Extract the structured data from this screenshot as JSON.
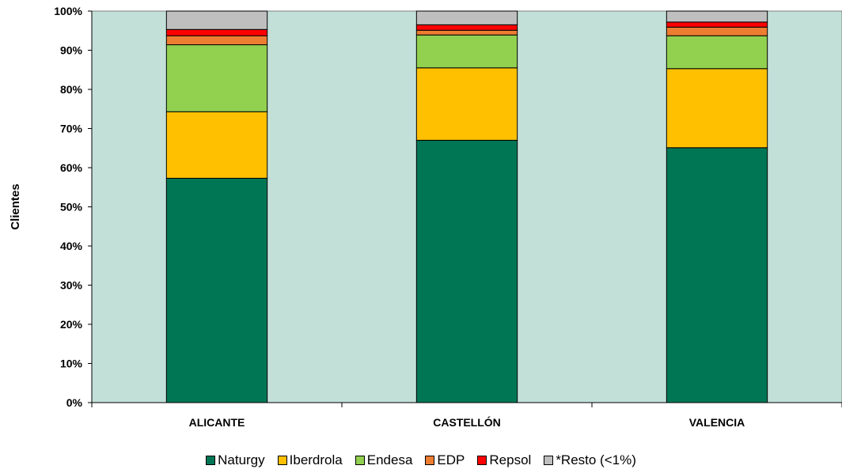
{
  "chart_data": {
    "type": "bar",
    "stacked": true,
    "percent_stacked": true,
    "title": "",
    "xlabel": "",
    "ylabel": "Clientes",
    "ylim": [
      0,
      100
    ],
    "yticks": [
      "0%",
      "10%",
      "20%",
      "30%",
      "40%",
      "50%",
      "60%",
      "70%",
      "80%",
      "90%",
      "100%"
    ],
    "categories": [
      "ALICANTE",
      "CASTELLÓN",
      "VALENCIA"
    ],
    "grid": false,
    "plot_background": "#c2e0d8",
    "legend_position": "bottom",
    "series": [
      {
        "name": "Naturgy",
        "color": "#007655",
        "values": [
          57.3,
          67.0,
          65.1
        ]
      },
      {
        "name": "Iberdrola",
        "color": "#ffc000",
        "values": [
          17.0,
          18.5,
          20.2
        ]
      },
      {
        "name": "Endesa",
        "color": "#92d050",
        "values": [
          17.1,
          8.4,
          8.4
        ]
      },
      {
        "name": "EDP",
        "color": "#ed7d31",
        "values": [
          2.3,
          1.2,
          2.2
        ]
      },
      {
        "name": "Repsol",
        "color": "#ff0000",
        "values": [
          1.6,
          1.4,
          1.3
        ]
      },
      {
        "name": "*Resto (<1%)",
        "color": "#bfbfbf",
        "values": [
          4.7,
          3.5,
          2.8
        ]
      }
    ]
  }
}
